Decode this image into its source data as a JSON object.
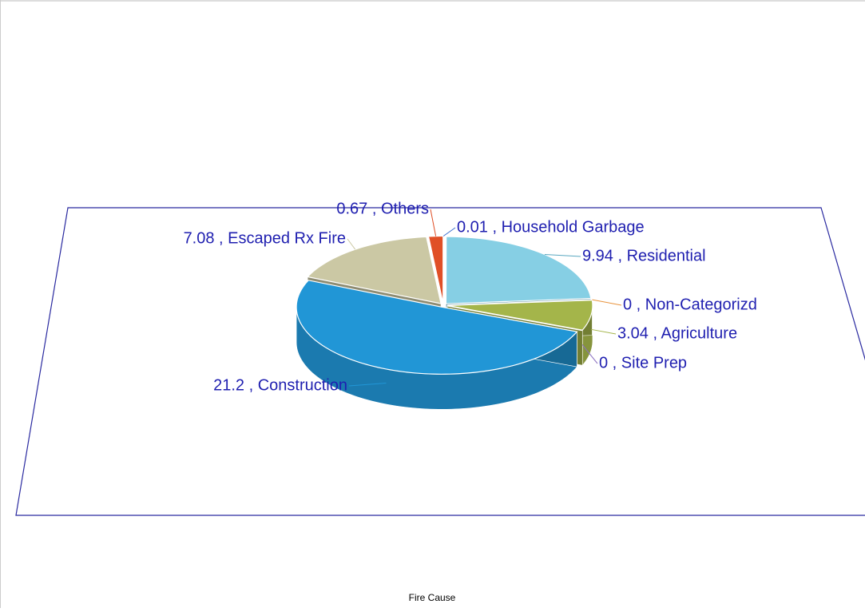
{
  "chart_data": {
    "type": "pie3d",
    "x_label": "Fire Cause",
    "values": [
      0.01,
      9.94,
      0,
      3.04,
      0,
      21.2,
      7.08,
      0.67
    ],
    "value_labels": [
      "0.01 , Household Garbage",
      "9.94 , Residential",
      "0 , Non-Categorizd",
      "3.04 , Agriculture",
      "0 , Site Prep",
      "21.2 , Construction",
      "7.08 , Escaped Rx Fire",
      "0.67 , Others"
    ],
    "colors": [
      "#3b6fd0",
      "#86cfe4",
      "#e8923a",
      "#a4b54a",
      "#8a6fc0",
      "#2196d6",
      "#cbc8a4",
      "#e04f26"
    ]
  }
}
